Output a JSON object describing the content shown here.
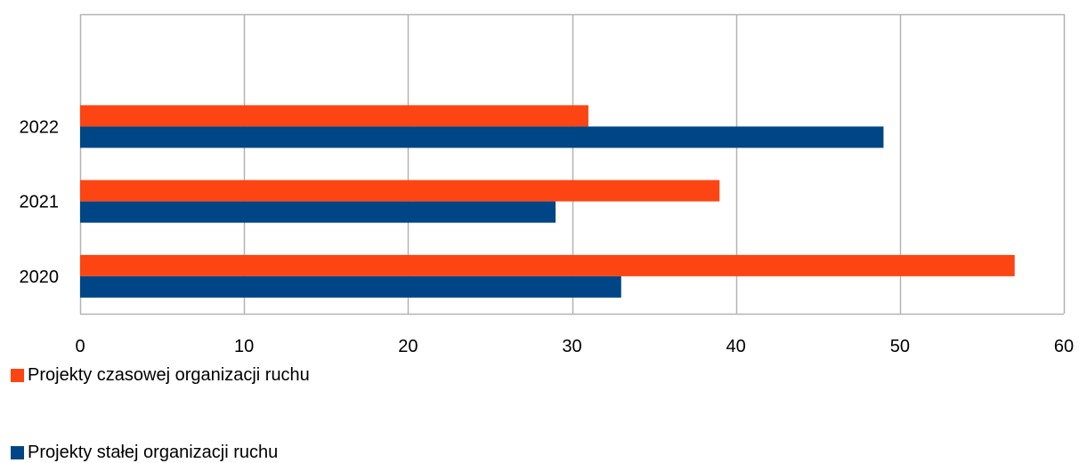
{
  "chart_data": {
    "type": "bar",
    "orientation": "horizontal",
    "categories": [
      "2020",
      "2021",
      "2022"
    ],
    "series": [
      {
        "name": "Projekty czasowej organizacji ruchu",
        "color": "#fc4512",
        "values": [
          57,
          39,
          31
        ]
      },
      {
        "name": "Projekty stałej organizacji ruchu",
        "color": "#004586",
        "values": [
          33,
          29,
          49
        ]
      }
    ],
    "xticks": [
      0,
      10,
      20,
      30,
      40,
      50,
      60
    ],
    "xlim": [
      0,
      60
    ],
    "grid": true,
    "legend_position": "bottom-left"
  }
}
